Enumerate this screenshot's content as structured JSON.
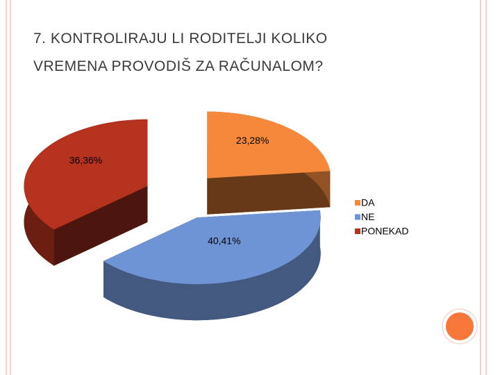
{
  "chart_data": {
    "type": "pie3d",
    "title": "7. KONTROLIRAJU LI RODITELJI KOLIKO VREMENA PROVODIŠ ZA RAČUNALOM?",
    "categories": [
      "DA",
      "NE",
      "PONEKAD"
    ],
    "values": [
      23.28,
      40.41,
      36.36
    ],
    "value_labels": [
      "23,28%",
      "40,41%",
      "36,36%"
    ],
    "colors": [
      "#f5883a",
      "#6f94d6",
      "#b5321e"
    ],
    "legend": "right"
  }
}
